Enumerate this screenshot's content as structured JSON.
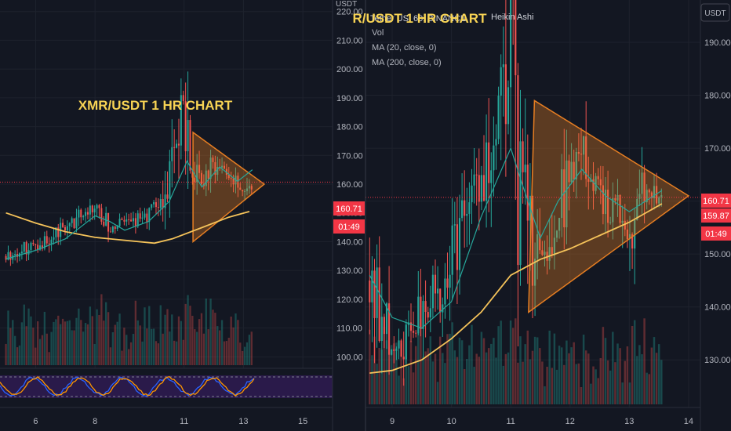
{
  "left_panel": {
    "title": "XMR/USDT 1 HR CHART",
    "axis_unit": "USDT",
    "price_label": "160.71",
    "countdown_label": "01:49",
    "y_ticks": [
      "220.00",
      "210.00",
      "200.00",
      "190.00",
      "180.00",
      "170.00",
      "160.00",
      "150.00",
      "140.00",
      "130.00",
      "120.00",
      "110.00",
      "100.00"
    ],
    "x_ticks": [
      "6",
      "8",
      "11",
      "13",
      "15"
    ]
  },
  "right_panel": {
    "title": "R/USDT 1 HR CHART",
    "header_text": "Heikin Ashi",
    "header_obscured": "Tether US, 60, BINANCE,",
    "legend": [
      "Vol",
      "MA (20, close, 0)",
      "MA (200, close, 0)"
    ],
    "axis_unit": "USDT",
    "price_label": "160.71",
    "ma_label": "159.87",
    "countdown_label": "01:49",
    "y_ticks": [
      "190.00",
      "180.00",
      "170.00",
      "160.00",
      "150.00",
      "140.00",
      "130.00"
    ],
    "x_ticks": [
      "9",
      "10",
      "11",
      "12",
      "13",
      "14"
    ]
  },
  "colors": {
    "background": "#131722",
    "up": "#26a69a",
    "down": "#ef5350",
    "ma20": "#26a69a",
    "ma200": "#f5c35a",
    "triangle": "#e67e22",
    "price_tag": "#f23645",
    "title": "#f7d354",
    "stoch_bg": "#2a1a4a"
  },
  "chart_data": [
    {
      "type": "candlestick",
      "title": "XMR/USDT 1 HR CHART",
      "ylim": [
        96,
        224
      ],
      "x_ticks": [
        6,
        8,
        11,
        13,
        15
      ],
      "xlim": [
        4.8,
        16.0
      ],
      "series": [
        {
          "name": "MA (200, close, 0)",
          "x": [
            5.0,
            6.0,
            7.0,
            8.0,
            9.0,
            10.0,
            10.6,
            11.5,
            12.5,
            13.2
          ],
          "y": [
            150,
            146.5,
            143.5,
            141.5,
            140.5,
            139.5,
            141,
            144.5,
            148.5,
            150.5
          ]
        },
        {
          "name": "MA (20, close, 0)",
          "x": [
            5.0,
            6.0,
            7.0,
            8.0,
            8.5,
            9.0,
            9.8,
            10.5,
            11.1,
            11.6,
            12.2,
            12.8,
            13.3
          ],
          "y": [
            134,
            137,
            141,
            149,
            147,
            144,
            147,
            154,
            168,
            159,
            166,
            161,
            165
          ]
        }
      ],
      "anchors": {
        "x": [
          5.0,
          6.2,
          7.0,
          7.9,
          8.6,
          9.5,
          10.3,
          10.8,
          11.0,
          11.2,
          11.6,
          12.0,
          12.5,
          13.0,
          13.3
        ],
        "y": [
          135,
          140,
          145,
          152,
          145,
          148,
          153,
          175,
          188,
          168,
          160,
          167,
          162,
          158,
          161
        ]
      },
      "triangle": {
        "x": [
          11.3,
          11.3,
          13.7
        ],
        "y": [
          178,
          140,
          160
        ]
      },
      "last_price": 160.71
    },
    {
      "type": "candlestick",
      "title": "R/USDT 1 HR CHART",
      "ylim": [
        121,
        198
      ],
      "x_ticks": [
        9,
        10,
        11,
        12,
        13,
        14
      ],
      "xlim": [
        8.55,
        14.2
      ],
      "series": [
        {
          "name": "MA (200, close, 0)",
          "x": [
            8.62,
            9.0,
            9.5,
            10.0,
            10.5,
            11.0,
            11.5,
            12.0,
            12.5,
            13.0,
            13.55
          ],
          "y": [
            127.5,
            128,
            130,
            134,
            139,
            146,
            149,
            151,
            153.5,
            156,
            159.5
          ]
        },
        {
          "name": "MA (20, close, 0)",
          "x": [
            8.62,
            9.0,
            9.5,
            10.0,
            10.5,
            11.0,
            11.2,
            11.5,
            11.8,
            12.2,
            12.6,
            13.0,
            13.55
          ],
          "y": [
            146,
            138,
            136,
            141,
            157,
            170,
            163,
            153,
            160,
            166,
            161,
            158,
            162
          ]
        }
      ],
      "anchors": {
        "x": [
          8.62,
          8.8,
          9.0,
          9.2,
          9.5,
          9.8,
          10.2,
          10.5,
          10.8,
          11.0,
          11.15,
          11.4,
          11.7,
          12.0,
          12.2,
          12.5,
          12.8,
          13.0,
          13.3,
          13.55
        ],
        "y": [
          145,
          138,
          132,
          131,
          138,
          144,
          155,
          166,
          177,
          189,
          163,
          148,
          155,
          165,
          168,
          160,
          157,
          153,
          162,
          161
        ]
      },
      "triangle": {
        "x": [
          11.4,
          11.3,
          14.0
        ],
        "y": [
          179,
          139,
          161
        ]
      },
      "last_price": 160.71,
      "ma_value": 159.87
    }
  ]
}
